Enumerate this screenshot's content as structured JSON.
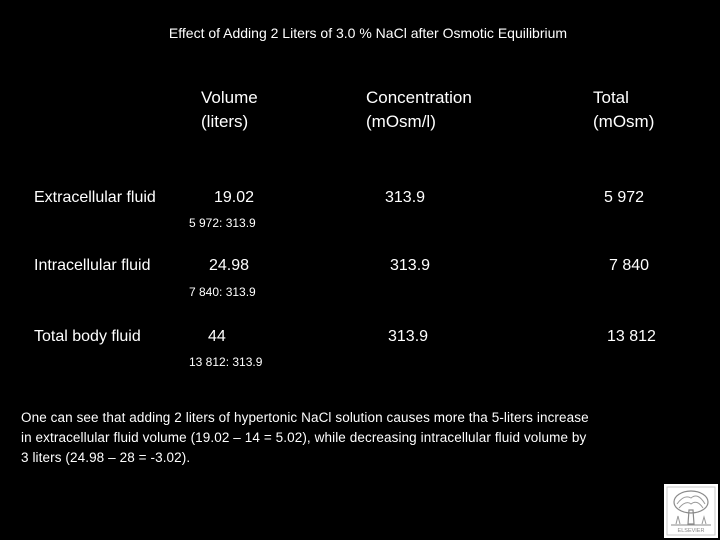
{
  "title": "Effect of Adding 2 Liters of 3.0 % NaCl after Osmotic Equilibrium",
  "headers": {
    "volume": "Volume\n(liters)",
    "concentration": "Concentration\n(mOsm/l)",
    "total": "Total\n(mOsm)"
  },
  "rows": [
    {
      "label": "Extracellular fluid",
      "volume": "19.02",
      "concentration": "313.9",
      "total": "5 972",
      "note": "5 972: 313.9"
    },
    {
      "label": "Intracellular fluid",
      "volume": "24.98",
      "concentration": "313.9",
      "total": "7 840",
      "note": "7 840: 313.9"
    },
    {
      "label": "Total body fluid",
      "volume": "44",
      "concentration": "313.9",
      "total": "13 812",
      "note": "13 812: 313.9"
    }
  ],
  "paragraph": "One can see that adding 2 liters of hypertonic NaCl solution causes more tha 5-liters increase\nin extracellular fluid volume (19.02 – 14 = 5.02), while decreasing intracellular fluid volume by\n 3 liters (24.98 – 28 = -3.02).",
  "logo": {
    "icon": "tree-logo-icon",
    "text": "ELSEVIER"
  }
}
